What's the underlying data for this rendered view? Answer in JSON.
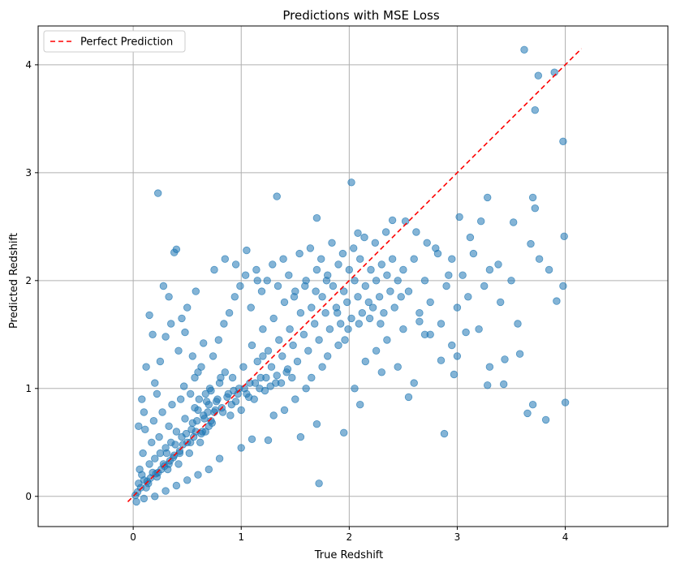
{
  "chart_data": {
    "type": "scatter",
    "title": "Predictions with MSE Loss",
    "xlabel": "True Redshift",
    "ylabel": "Predicted Redshift",
    "xlim": [
      -0.88,
      4.95
    ],
    "ylim": [
      -0.28,
      4.36
    ],
    "xticks": [
      0,
      1,
      2,
      3,
      4
    ],
    "yticks": [
      0,
      1,
      2,
      3,
      4
    ],
    "xtick_labels": [
      "0",
      "1",
      "2",
      "3",
      "4"
    ],
    "ytick_labels": [
      "0",
      "1",
      "2",
      "3",
      "4"
    ],
    "grid": true,
    "legend_position": "top-left",
    "legend": [
      {
        "label": "Perfect Prediction",
        "style": "dashed",
        "color": "#ff0000"
      }
    ],
    "reference_line": {
      "x": [
        -0.05,
        4.15
      ],
      "y": [
        -0.05,
        4.15
      ],
      "color": "#ff0000",
      "style": "dashed"
    },
    "point_color": "#1f77b4",
    "point_alpha": 0.55,
    "points": [
      [
        0.02,
        0.01
      ],
      [
        0.05,
        0.12
      ],
      [
        0.08,
        0.2
      ],
      [
        0.03,
        -0.05
      ],
      [
        0.1,
        0.15
      ],
      [
        0.12,
        0.08
      ],
      [
        0.15,
        0.3
      ],
      [
        0.06,
        0.25
      ],
      [
        0.18,
        0.22
      ],
      [
        0.2,
        0.35
      ],
      [
        0.09,
        0.4
      ],
      [
        0.14,
        0.12
      ],
      [
        0.22,
        0.18
      ],
      [
        0.25,
        0.4
      ],
      [
        0.17,
        0.5
      ],
      [
        0.28,
        0.3
      ],
      [
        0.3,
        0.45
      ],
      [
        0.11,
        0.62
      ],
      [
        0.24,
        0.55
      ],
      [
        0.32,
        0.25
      ],
      [
        0.35,
        0.5
      ],
      [
        0.19,
        0.7
      ],
      [
        0.38,
        0.38
      ],
      [
        0.4,
        0.6
      ],
      [
        0.27,
        0.78
      ],
      [
        0.42,
        0.3
      ],
      [
        0.45,
        0.55
      ],
      [
        0.33,
        0.65
      ],
      [
        0.48,
        0.72
      ],
      [
        0.5,
        0.5
      ],
      [
        0.36,
        0.85
      ],
      [
        0.52,
        0.4
      ],
      [
        0.55,
        0.68
      ],
      [
        0.44,
        0.9
      ],
      [
        0.58,
        0.6
      ],
      [
        0.6,
        0.8
      ],
      [
        0.47,
        1.02
      ],
      [
        0.62,
        0.5
      ],
      [
        0.65,
        0.75
      ],
      [
        0.53,
        0.95
      ],
      [
        0.68,
        0.88
      ],
      [
        0.7,
        0.65
      ],
      [
        0.57,
        1.1
      ],
      [
        0.72,
        0.98
      ],
      [
        0.75,
        0.78
      ],
      [
        0.63,
        1.2
      ],
      [
        0.78,
        0.9
      ],
      [
        0.8,
        1.05
      ],
      [
        0.67,
        0.6
      ],
      [
        0.82,
        0.82
      ],
      [
        0.85,
        1.15
      ],
      [
        0.74,
        1.3
      ],
      [
        0.88,
        0.95
      ],
      [
        0.9,
        0.75
      ],
      [
        0.79,
        1.45
      ],
      [
        0.92,
        1.1
      ],
      [
        0.95,
        0.88
      ],
      [
        0.84,
        1.6
      ],
      [
        0.98,
        1.0
      ],
      [
        1.0,
        0.8
      ],
      [
        0.89,
        1.7
      ],
      [
        1.02,
        1.2
      ],
      [
        1.05,
        0.95
      ],
      [
        0.94,
        1.85
      ],
      [
        1.08,
        1.05
      ],
      [
        1.1,
        1.4
      ],
      [
        0.99,
        1.95
      ],
      [
        1.12,
        0.9
      ],
      [
        1.15,
        1.25
      ],
      [
        1.04,
        2.05
      ],
      [
        1.18,
        1.1
      ],
      [
        1.2,
        1.55
      ],
      [
        1.09,
        1.75
      ],
      [
        1.22,
        0.98
      ],
      [
        1.25,
        1.35
      ],
      [
        1.14,
        2.1
      ],
      [
        1.28,
        1.2
      ],
      [
        1.3,
        1.65
      ],
      [
        1.19,
        1.9
      ],
      [
        1.32,
        1.05
      ],
      [
        1.35,
        1.45
      ],
      [
        1.24,
        2.0
      ],
      [
        1.38,
        1.3
      ],
      [
        1.4,
        1.8
      ],
      [
        1.29,
        2.15
      ],
      [
        1.42,
        1.15
      ],
      [
        1.45,
        1.55
      ],
      [
        1.34,
        1.95
      ],
      [
        1.48,
        1.4
      ],
      [
        1.5,
        1.9
      ],
      [
        1.39,
        2.2
      ],
      [
        1.52,
        1.25
      ],
      [
        1.55,
        1.7
      ],
      [
        1.44,
        2.05
      ],
      [
        1.58,
        1.5
      ],
      [
        1.6,
        2.0
      ],
      [
        1.49,
        1.85
      ],
      [
        1.62,
        1.35
      ],
      [
        1.65,
        1.75
      ],
      [
        1.54,
        2.25
      ],
      [
        1.68,
        1.6
      ],
      [
        1.7,
        2.1
      ],
      [
        1.59,
        1.95
      ],
      [
        1.72,
        1.45
      ],
      [
        1.75,
        1.85
      ],
      [
        1.64,
        2.3
      ],
      [
        1.78,
        1.7
      ],
      [
        1.8,
        2.05
      ],
      [
        1.69,
        1.9
      ],
      [
        1.82,
        1.55
      ],
      [
        1.85,
        1.95
      ],
      [
        1.74,
        2.2
      ],
      [
        1.88,
        1.75
      ],
      [
        1.9,
        2.15
      ],
      [
        1.79,
        2.0
      ],
      [
        1.92,
        1.6
      ],
      [
        1.95,
        1.9
      ],
      [
        1.84,
        2.35
      ],
      [
        1.98,
        1.8
      ],
      [
        2.0,
        2.1
      ],
      [
        1.89,
        1.7
      ],
      [
        2.02,
        1.65
      ],
      [
        2.05,
        2.0
      ],
      [
        1.94,
        2.25
      ],
      [
        2.08,
        1.85
      ],
      [
        2.1,
        2.2
      ],
      [
        1.99,
        1.55
      ],
      [
        2.12,
        1.7
      ],
      [
        2.15,
        1.95
      ],
      [
        2.04,
        2.3
      ],
      [
        2.18,
        1.8
      ],
      [
        2.2,
        2.1
      ],
      [
        2.09,
        1.6
      ],
      [
        2.22,
        1.75
      ],
      [
        2.25,
        2.0
      ],
      [
        2.14,
        2.4
      ],
      [
        2.28,
        1.85
      ],
      [
        2.3,
        2.15
      ],
      [
        2.19,
        1.65
      ],
      [
        2.32,
        1.7
      ],
      [
        2.35,
        2.05
      ],
      [
        2.24,
        2.35
      ],
      [
        2.38,
        1.9
      ],
      [
        2.4,
        2.2
      ],
      [
        2.29,
        1.6
      ],
      [
        2.42,
        1.75
      ],
      [
        2.45,
        2.0
      ],
      [
        2.34,
        2.45
      ],
      [
        2.48,
        1.85
      ],
      [
        2.5,
        2.1
      ],
      [
        2.55,
        1.9
      ],
      [
        2.6,
        2.2
      ],
      [
        2.65,
        1.7
      ],
      [
        2.7,
        2.0
      ],
      [
        2.75,
        1.8
      ],
      [
        2.8,
        2.3
      ],
      [
        2.85,
        1.6
      ],
      [
        2.9,
        1.95
      ],
      [
        2.95,
        2.2
      ],
      [
        3.0,
        1.75
      ],
      [
        3.05,
        2.05
      ],
      [
        3.1,
        1.85
      ],
      [
        3.15,
        2.25
      ],
      [
        3.2,
        1.55
      ],
      [
        3.25,
        1.95
      ],
      [
        3.3,
        2.1
      ],
      [
        3.4,
        1.8
      ],
      [
        3.5,
        2.0
      ],
      [
        2.52,
        2.55
      ],
      [
        2.62,
        2.45
      ],
      [
        2.72,
        2.35
      ],
      [
        2.82,
        2.25
      ],
      [
        2.92,
        2.05
      ],
      [
        3.02,
        2.59
      ],
      [
        3.12,
        2.4
      ],
      [
        3.22,
        2.55
      ],
      [
        3.28,
        2.77
      ],
      [
        3.38,
        2.15
      ],
      [
        3.52,
        2.54
      ],
      [
        3.7,
        2.77
      ],
      [
        3.72,
        2.67
      ],
      [
        3.68,
        2.34
      ],
      [
        3.76,
        2.2
      ],
      [
        3.85,
        2.1
      ],
      [
        3.92,
        1.81
      ],
      [
        3.98,
        1.95
      ],
      [
        3.99,
        2.41
      ],
      [
        3.98,
        3.29
      ],
      [
        3.72,
        3.58
      ],
      [
        3.75,
        3.9
      ],
      [
        3.62,
        4.14
      ],
      [
        3.9,
        3.93
      ],
      [
        3.56,
        1.6
      ],
      [
        3.58,
        1.32
      ],
      [
        3.44,
        1.27
      ],
      [
        3.3,
        1.2
      ],
      [
        3.28,
        1.03
      ],
      [
        3.43,
        1.04
      ],
      [
        3.08,
        1.52
      ],
      [
        3.0,
        1.3
      ],
      [
        2.95,
        1.4
      ],
      [
        2.97,
        1.13
      ],
      [
        2.85,
        1.26
      ],
      [
        2.7,
        1.5
      ],
      [
        2.6,
        1.05
      ],
      [
        2.55,
        0.92
      ],
      [
        2.45,
        1.2
      ],
      [
        2.3,
        1.15
      ],
      [
        2.1,
        0.85
      ],
      [
        2.05,
        1.0
      ],
      [
        1.95,
        0.59
      ],
      [
        1.7,
        0.67
      ],
      [
        1.72,
        0.12
      ],
      [
        1.55,
        0.55
      ],
      [
        1.25,
        0.52
      ],
      [
        1.1,
        0.53
      ],
      [
        1.0,
        0.45
      ],
      [
        0.8,
        0.35
      ],
      [
        0.7,
        0.25
      ],
      [
        0.6,
        0.2
      ],
      [
        0.5,
        0.15
      ],
      [
        0.4,
        0.1
      ],
      [
        0.3,
        0.05
      ],
      [
        0.2,
        0.0
      ],
      [
        0.1,
        -0.02
      ],
      [
        2.88,
        0.58
      ],
      [
        3.7,
        0.85
      ],
      [
        3.82,
        0.71
      ],
      [
        3.65,
        0.77
      ],
      [
        4.0,
        0.87
      ],
      [
        0.23,
        2.81
      ],
      [
        0.38,
        2.26
      ],
      [
        0.4,
        2.29
      ],
      [
        1.33,
        2.78
      ],
      [
        2.02,
        2.91
      ],
      [
        1.7,
        2.58
      ],
      [
        2.08,
        2.44
      ],
      [
        2.4,
        2.56
      ],
      [
        0.28,
        1.95
      ],
      [
        0.33,
        1.85
      ],
      [
        0.18,
        1.5
      ],
      [
        0.15,
        1.68
      ],
      [
        0.12,
        1.2
      ],
      [
        0.08,
        0.9
      ],
      [
        0.05,
        0.65
      ],
      [
        0.1,
        0.78
      ],
      [
        0.2,
        1.05
      ],
      [
        0.25,
        1.25
      ],
      [
        0.3,
        1.48
      ],
      [
        0.35,
        1.6
      ],
      [
        0.22,
        0.95
      ],
      [
        0.42,
        1.35
      ],
      [
        0.48,
        1.52
      ],
      [
        0.55,
        1.3
      ],
      [
        0.6,
        1.15
      ],
      [
        0.65,
        1.42
      ],
      [
        0.45,
        1.65
      ],
      [
        0.5,
        1.75
      ],
      [
        0.58,
        1.9
      ],
      [
        0.75,
        2.1
      ],
      [
        0.85,
        2.2
      ],
      [
        0.95,
        2.15
      ],
      [
        1.05,
        2.28
      ],
      [
        1.15,
        2.0
      ],
      [
        1.2,
        1.3
      ],
      [
        1.3,
        0.75
      ],
      [
        1.4,
        0.8
      ],
      [
        1.5,
        0.9
      ],
      [
        1.6,
        1.0
      ],
      [
        1.65,
        1.1
      ],
      [
        1.75,
        1.2
      ],
      [
        1.8,
        1.3
      ],
      [
        1.9,
        1.4
      ],
      [
        1.96,
        1.45
      ],
      [
        2.15,
        1.25
      ],
      [
        2.25,
        1.35
      ],
      [
        2.35,
        1.45
      ],
      [
        2.5,
        1.55
      ],
      [
        2.65,
        1.62
      ],
      [
        2.75,
        1.5
      ],
      [
        0.7,
        0.85
      ],
      [
        0.72,
        0.7
      ],
      [
        0.76,
        0.8
      ],
      [
        0.66,
        0.72
      ],
      [
        0.64,
        0.6
      ],
      [
        0.56,
        0.55
      ],
      [
        0.54,
        0.62
      ],
      [
        0.46,
        0.48
      ],
      [
        0.43,
        0.42
      ],
      [
        0.37,
        0.36
      ],
      [
        0.34,
        0.33
      ],
      [
        0.29,
        0.28
      ],
      [
        0.26,
        0.25
      ],
      [
        0.21,
        0.21
      ],
      [
        0.16,
        0.17
      ],
      [
        0.13,
        0.14
      ],
      [
        0.07,
        0.08
      ],
      [
        0.04,
        0.04
      ],
      [
        0.31,
        0.4
      ],
      [
        0.39,
        0.48
      ],
      [
        0.49,
        0.58
      ],
      [
        0.59,
        0.7
      ],
      [
        0.69,
        0.78
      ],
      [
        0.77,
        0.88
      ],
      [
        0.87,
        0.92
      ],
      [
        0.93,
        0.98
      ],
      [
        0.97,
        0.95
      ],
      [
        1.03,
        1.0
      ],
      [
        1.07,
        0.92
      ],
      [
        1.13,
        1.05
      ],
      [
        1.17,
        1.0
      ],
      [
        1.23,
        1.1
      ],
      [
        1.27,
        1.02
      ],
      [
        1.33,
        1.12
      ],
      [
        1.37,
        1.05
      ],
      [
        1.43,
        1.18
      ],
      [
        1.47,
        1.1
      ],
      [
        0.91,
        0.85
      ],
      [
        0.83,
        0.78
      ],
      [
        0.73,
        0.68
      ],
      [
        0.63,
        0.58
      ],
      [
        0.53,
        0.5
      ],
      [
        0.43,
        0.4
      ],
      [
        0.33,
        0.3
      ],
      [
        0.23,
        0.22
      ],
      [
        0.61,
        0.9
      ],
      [
        0.71,
        1.0
      ],
      [
        0.81,
        1.1
      ],
      [
        0.67,
        0.95
      ],
      [
        0.57,
        0.82
      ]
    ]
  }
}
